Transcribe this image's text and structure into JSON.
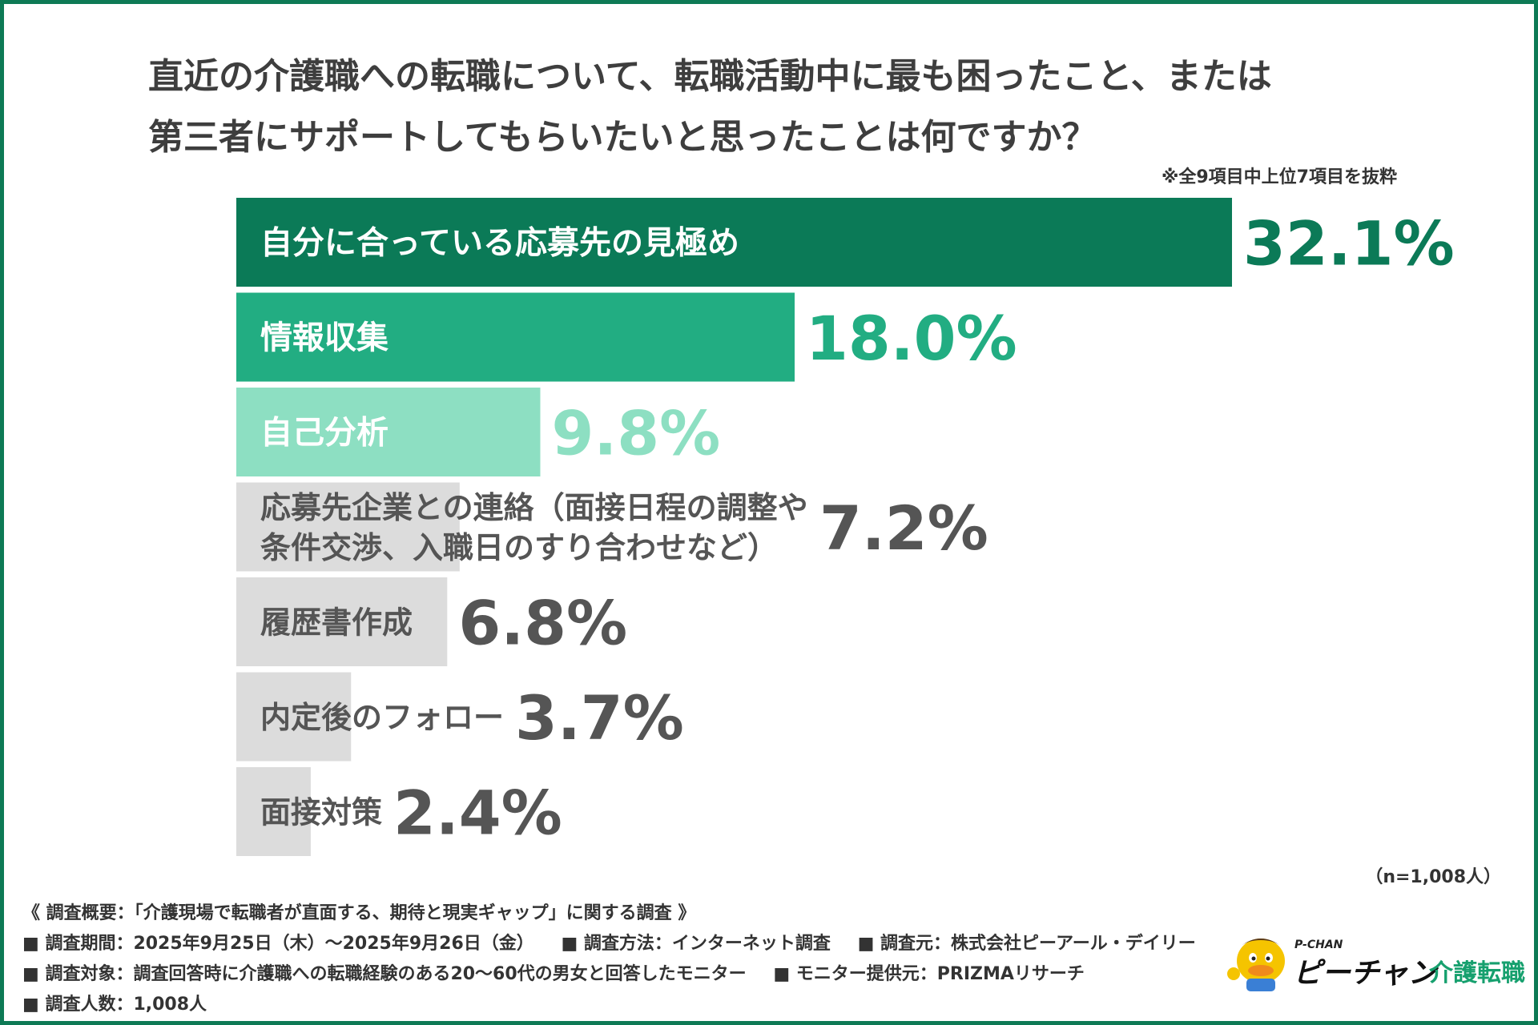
{
  "title_lines": [
    "直近の介護職への転職について、転職活動中に最も困ったこと、または",
    "第三者にサポートしてもらいたいと思ったことは何ですか？"
  ],
  "note": "※全9項目中上位7項目を抜粋",
  "sample_note": "（n=1,008人）",
  "chart_data": {
    "type": "bar",
    "orientation": "horizontal",
    "title": "",
    "xlabel": "",
    "ylabel": "",
    "xlim": [
      0,
      32.1
    ],
    "grid": false,
    "categories": [
      [
        "自分に合っている応募先の見極め"
      ],
      [
        "情報収集"
      ],
      [
        "自己分析"
      ],
      [
        "応募先企業との連絡（面接日程の調整や",
        "条件交渉、入職日のすり合わせなど）"
      ],
      [
        "履歴書作成"
      ],
      [
        "内定後のフォロー"
      ],
      [
        "面接対策"
      ]
    ],
    "values": [
      32.1,
      18.0,
      9.8,
      7.2,
      6.8,
      3.7,
      2.4
    ],
    "value_labels": [
      "32.1%",
      "18.0%",
      "9.8%",
      "7.2%",
      "6.8%",
      "3.7%",
      "2.4%"
    ],
    "bar_colors": [
      "#0b7a57",
      "#22ad82",
      "#8ddfc2",
      "#dcdcdc",
      "#dcdcdc",
      "#dcdcdc",
      "#dcdcdc"
    ],
    "label_colors": [
      "#ffffff",
      "#ffffff",
      "#ffffff",
      "#555555",
      "#555555",
      "#555555",
      "#555555"
    ],
    "value_colors": [
      "#0b7a57",
      "#22ad82",
      "#8ddfc2",
      "#555555",
      "#555555",
      "#555555",
      "#555555"
    ]
  },
  "survey": {
    "heading": "《 調査概要：「介護現場で転職者が直面する、期待と現実ギャップ」に関する調査 》",
    "line2": [
      "■ 調査期間：2025年9月25日（木）〜2025年9月26日（金）",
      "■ 調査方法：インターネット調査",
      "■ 調査元：株式会社ピーアール・デイリー"
    ],
    "line3": [
      "■ 調査対象：調査回答時に介護職への転職経験のある20〜60代の男女と回答したモニター",
      "■ モニター提供元：PRIZMAリサーチ"
    ],
    "line4": "■ 調査人数：1,008人"
  },
  "logo": {
    "small_text": "P-CHAN",
    "brand_text": "ピーチャン",
    "sub_text": "介護転職",
    "accent_color": "#16a06e",
    "icon": "duck-mascot-icon"
  },
  "colors": {
    "frame": "#0e7a55",
    "title_text": "#3e3e3e"
  }
}
